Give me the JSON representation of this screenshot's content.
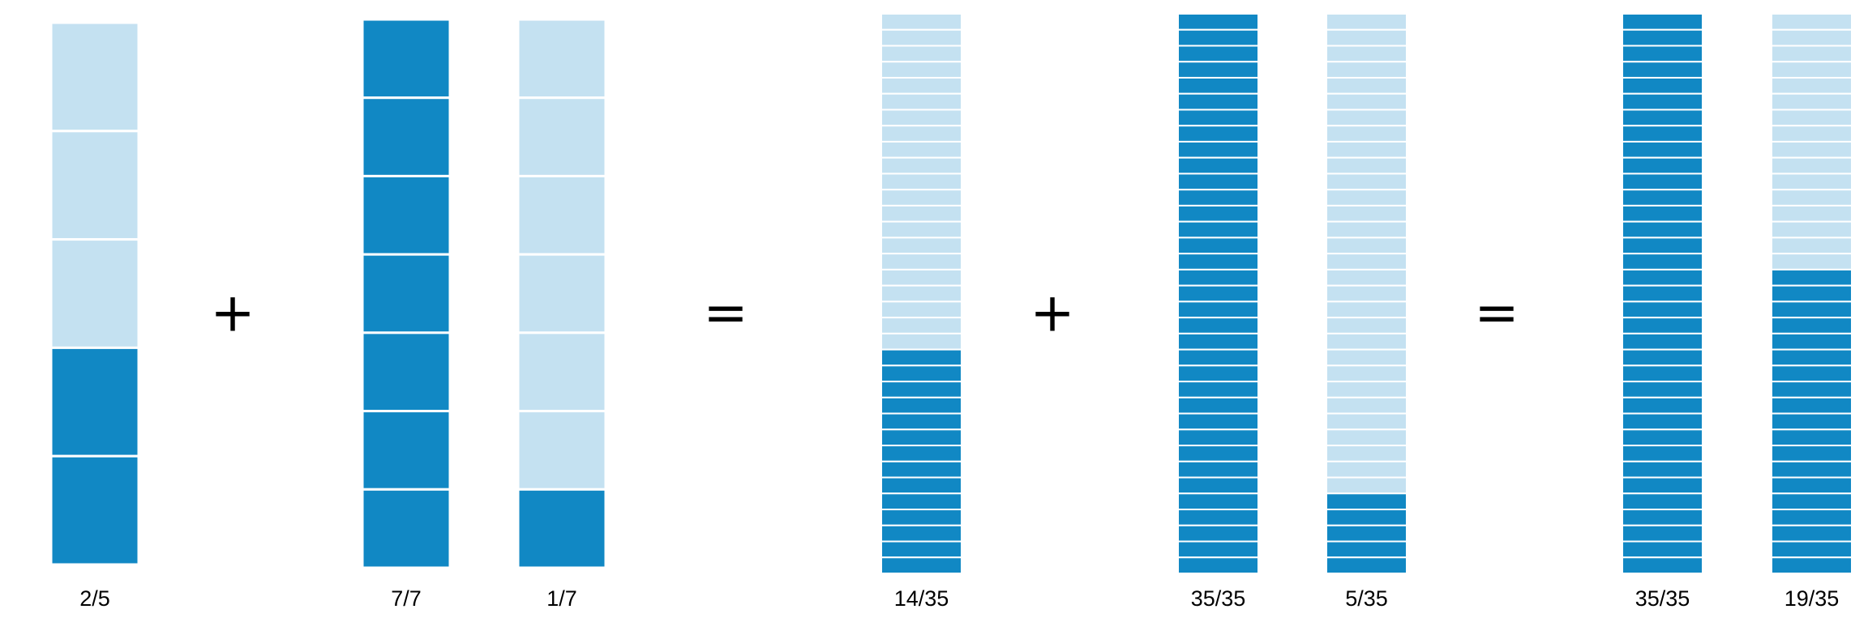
{
  "colors": {
    "filled": "#1188c4",
    "empty": "#c4e1f1",
    "divider": "#ffffff"
  },
  "bars": [
    {
      "label": "2/5",
      "parts": 5,
      "filled": 2
    },
    {
      "label": "7/7",
      "parts": 7,
      "filled": 7
    },
    {
      "label": "1/7",
      "parts": 7,
      "filled": 1
    },
    {
      "label": "14/35",
      "parts": 35,
      "filled": 14
    },
    {
      "label": "35/35",
      "parts": 35,
      "filled": 35
    },
    {
      "label": "5/35",
      "parts": 35,
      "filled": 5
    },
    {
      "label": "35/35",
      "parts": 35,
      "filled": 35
    },
    {
      "label": "19/35",
      "parts": 35,
      "filled": 19
    }
  ],
  "operators": [
    "+",
    "=",
    "+",
    "="
  ]
}
